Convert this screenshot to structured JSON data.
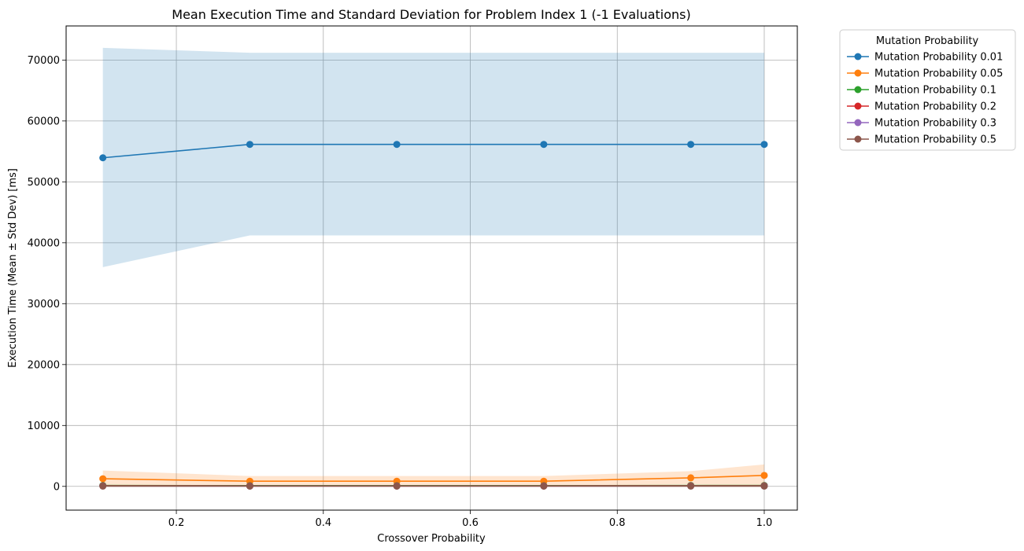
{
  "chart_data": {
    "type": "line",
    "title": "Mean Execution Time and Standard Deviation for Problem Index 1 (-1 Evaluations)",
    "xlabel": "Crossover Probability",
    "ylabel": "Execution Time (Mean ± Std Dev) [ms]",
    "xlim": [
      0.05,
      1.045
    ],
    "ylim": [
      -3900,
      75600
    ],
    "xticks": [
      0.2,
      0.4,
      0.6,
      0.8,
      1.0
    ],
    "xtick_labels": [
      "0.2",
      "0.4",
      "0.6",
      "0.8",
      "1.0"
    ],
    "yticks": [
      0,
      10000,
      20000,
      30000,
      40000,
      50000,
      60000,
      70000
    ],
    "ytick_labels": [
      "0",
      "10000",
      "20000",
      "30000",
      "40000",
      "50000",
      "60000",
      "70000"
    ],
    "grid": true,
    "legend": {
      "title": "Mutation Probability",
      "placement": "outside-top-right"
    },
    "x": [
      0.1,
      0.3,
      0.5,
      0.7,
      0.9,
      1.0
    ],
    "series": [
      {
        "name": "Mutation Probability 0.01",
        "color": "#1f77b4",
        "mean": [
          53950,
          56150,
          56150,
          56150,
          56150,
          56150
        ],
        "lower": [
          36000,
          41200,
          41200,
          41200,
          41200,
          41200
        ],
        "upper": [
          72000,
          71200,
          71200,
          71200,
          71200,
          71200
        ]
      },
      {
        "name": "Mutation Probability 0.05",
        "color": "#ff7f0e",
        "mean": [
          1250,
          850,
          850,
          850,
          1400,
          1800
        ],
        "lower": [
          0,
          0,
          0,
          0,
          300,
          0
        ],
        "upper": [
          2600,
          1700,
          1700,
          1700,
          2500,
          3600
        ]
      },
      {
        "name": "Mutation Probability 0.1",
        "color": "#2ca02c",
        "mean": [
          150,
          120,
          120,
          120,
          150,
          150
        ],
        "lower": [
          50,
          50,
          50,
          50,
          50,
          50
        ],
        "upper": [
          260,
          200,
          200,
          200,
          260,
          260
        ]
      },
      {
        "name": "Mutation Probability 0.2",
        "color": "#d62728",
        "mean": [
          100,
          80,
          80,
          80,
          100,
          100
        ],
        "lower": [
          40,
          40,
          40,
          40,
          40,
          40
        ],
        "upper": [
          170,
          130,
          130,
          130,
          170,
          170
        ]
      },
      {
        "name": "Mutation Probability 0.3",
        "color": "#9467bd",
        "mean": [
          70,
          60,
          60,
          60,
          70,
          70
        ],
        "lower": [
          30,
          30,
          30,
          30,
          30,
          30
        ],
        "upper": [
          120,
          100,
          100,
          100,
          120,
          120
        ]
      },
      {
        "name": "Mutation Probability 0.5",
        "color": "#8c564b",
        "mean": [
          50,
          40,
          40,
          40,
          50,
          50
        ],
        "lower": [
          20,
          20,
          20,
          20,
          20,
          20
        ],
        "upper": [
          90,
          70,
          70,
          70,
          90,
          90
        ]
      }
    ]
  }
}
